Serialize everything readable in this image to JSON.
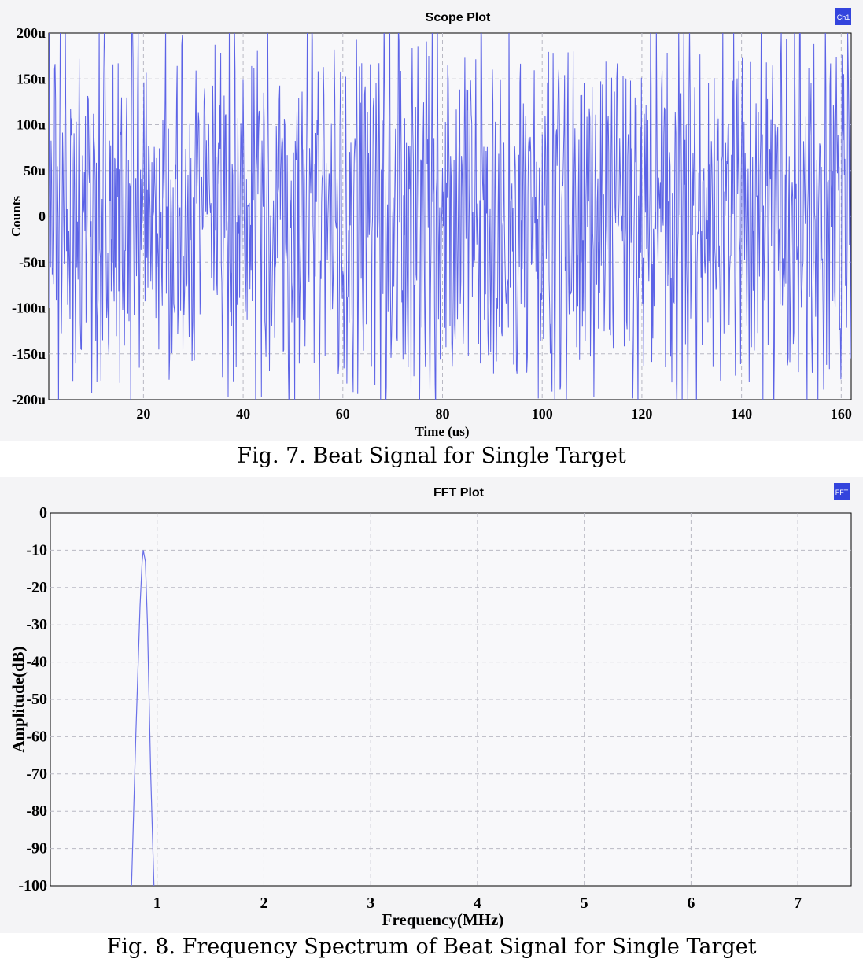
{
  "chart_data": [
    {
      "type": "line",
      "title": "Scope Plot",
      "legend_label": "Ch1",
      "legend_color": "#3344dd",
      "legend_position": "top-right",
      "xlabel": "Time (us)",
      "ylabel": "Counts",
      "xlim": [
        1,
        162
      ],
      "ylim": [
        -200,
        200
      ],
      "y_unit": "u",
      "xticks": [
        "20",
        "40",
        "60",
        "80",
        "100",
        "120",
        "140",
        "160"
      ],
      "xtick_values": [
        20,
        40,
        60,
        80,
        100,
        120,
        140,
        160
      ],
      "yticks": [
        "200u",
        "150u",
        "100u",
        "50u",
        "0",
        "-50u",
        "-100u",
        "-150u",
        "-200u"
      ],
      "ytick_values": [
        200,
        150,
        100,
        50,
        0,
        -50,
        -100,
        -150,
        -200
      ],
      "grid": true,
      "line_color": "#5c63e6",
      "series": [
        {
          "description_of_shape": "dense noise-like beat signal spanning full range",
          "values": []
        }
      ]
    },
    {
      "type": "line",
      "title": "FFT Plot",
      "legend_label": "FFT",
      "legend_color": "#3344dd",
      "legend_position": "top-right",
      "xlabel": "Frequency(MHz)",
      "ylabel": "Amplitude(dB)",
      "xlim": [
        0,
        7.5
      ],
      "ylim": [
        -100,
        0
      ],
      "xticks": [
        "1",
        "2",
        "3",
        "4",
        "5",
        "6",
        "7"
      ],
      "xtick_values": [
        1,
        2,
        3,
        4,
        5,
        6,
        7
      ],
      "yticks": [
        "0",
        "-10",
        "-20",
        "-30",
        "-40",
        "-50",
        "-60",
        "-70",
        "-80",
        "-90",
        "-100"
      ],
      "ytick_values": [
        0,
        -10,
        -20,
        -30,
        -40,
        -50,
        -60,
        -70,
        -80,
        -90,
        -100
      ],
      "grid": true,
      "line_color": "#6a70e8",
      "series": [
        {
          "x": [
            0.76,
            0.8,
            0.84,
            0.86,
            0.87,
            0.89,
            0.91,
            0.94,
            0.97
          ],
          "y": [
            -100,
            -60,
            -25,
            -13,
            -10,
            -13,
            -30,
            -70,
            -100
          ]
        }
      ]
    }
  ],
  "captions": {
    "fig7": "Fig. 7. Beat Signal for Single Target",
    "fig8": "Fig. 8. Frequency Spectrum of Beat Signal for Single Target"
  }
}
